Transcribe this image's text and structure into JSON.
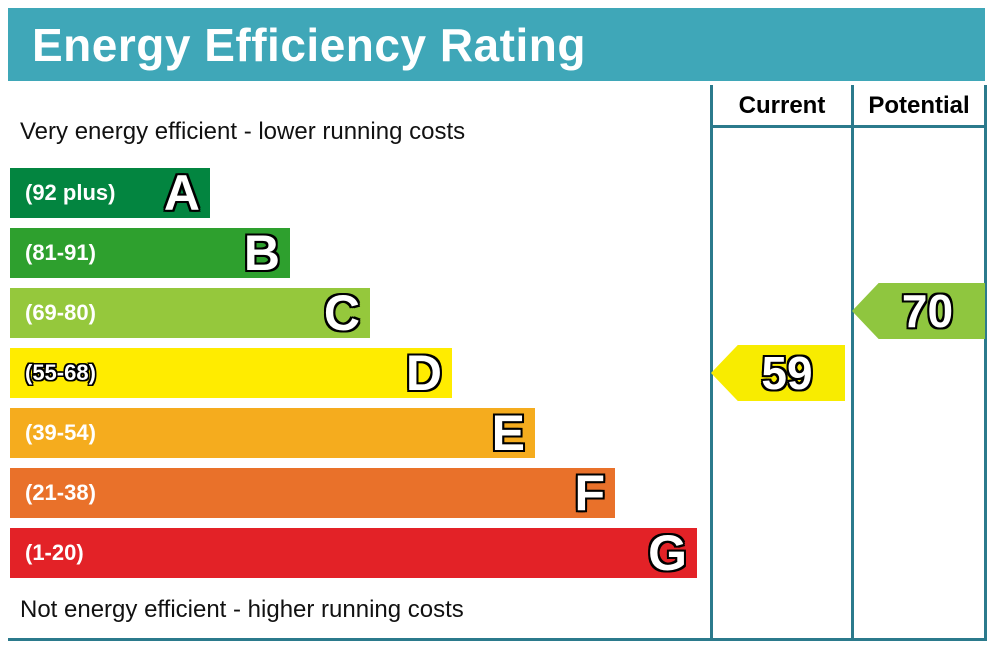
{
  "header": {
    "title": "Energy Efficiency Rating"
  },
  "captions": {
    "top": "Very energy efficient - lower running costs",
    "bottom": "Not energy efficient - higher running costs"
  },
  "table": {
    "current_label": "Current",
    "potential_label": "Potential"
  },
  "bands": [
    {
      "letter": "A",
      "range": "(92 plus)",
      "color": "#038540"
    },
    {
      "letter": "B",
      "range": "(81-91)",
      "color": "#2EA02E"
    },
    {
      "letter": "C",
      "range": "(69-80)",
      "color": "#95C83C"
    },
    {
      "letter": "D",
      "range": "(55-68)",
      "color": "#FFEC00"
    },
    {
      "letter": "E",
      "range": "(39-54)",
      "color": "#F5AC1E"
    },
    {
      "letter": "F",
      "range": "(21-38)",
      "color": "#E9712A"
    },
    {
      "letter": "G",
      "range": "(1-20)",
      "color": "#E32227"
    }
  ],
  "ratings": {
    "current": {
      "value": "59",
      "color": "#F8EC00",
      "band": "D"
    },
    "potential": {
      "value": "70",
      "color": "#8FC63F",
      "band": "C"
    }
  },
  "colors": {
    "banner": "#3FA7B8",
    "border": "#2B7A8C"
  },
  "chart_data": {
    "type": "bar",
    "title": "Energy Efficiency Rating",
    "categories": [
      "A",
      "B",
      "C",
      "D",
      "E",
      "F",
      "G"
    ],
    "band_ranges": [
      "92 plus",
      "81-91",
      "69-80",
      "55-68",
      "39-54",
      "21-38",
      "1-20"
    ],
    "band_colors": [
      "#038540",
      "#2EA02E",
      "#95C83C",
      "#FFEC00",
      "#F5AC1E",
      "#E9712A",
      "#E32227"
    ],
    "bar_lengths_relative": [
      1,
      2,
      3,
      4,
      5,
      6,
      7
    ],
    "markers": [
      {
        "name": "Current",
        "value": 59,
        "band": "D",
        "color": "#F8EC00"
      },
      {
        "name": "Potential",
        "value": 70,
        "band": "C",
        "color": "#8FC63F"
      }
    ],
    "annotations": [
      "Very energy efficient - lower running costs",
      "Not energy efficient - higher running costs"
    ],
    "legend_position": "top-right-columns",
    "grid": false
  }
}
